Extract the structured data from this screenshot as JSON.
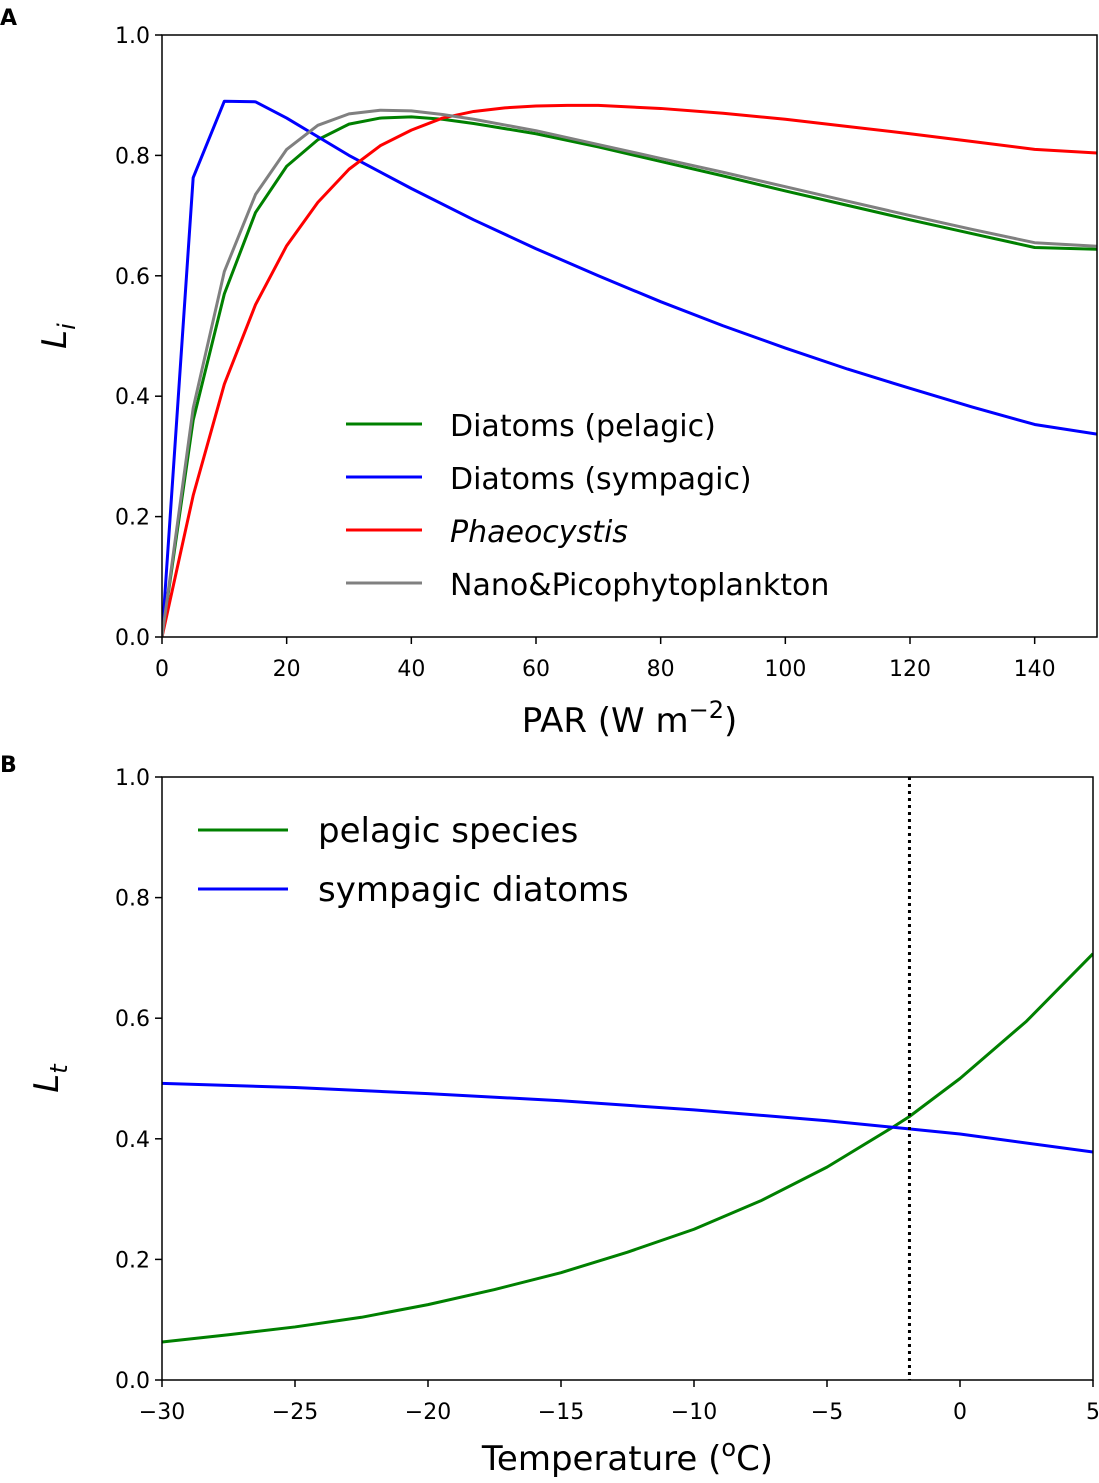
{
  "chart_data": [
    {
      "panel": "A",
      "type": "line",
      "title": "",
      "xlabel": "PAR (W m",
      "xlabel_sup": "−2",
      "xlabel_end": ")",
      "ylabel": "L",
      "ylabel_sub": "i",
      "xlim": [
        0,
        150
      ],
      "ylim": [
        0,
        1.0
      ],
      "xticks": [
        0,
        20,
        40,
        60,
        80,
        100,
        120,
        140
      ],
      "xtick_labels": [
        "0",
        "20",
        "40",
        "60",
        "80",
        "100",
        "120",
        "140"
      ],
      "yticks": [
        0.0,
        0.2,
        0.4,
        0.6,
        0.8,
        1.0
      ],
      "ytick_labels": [
        "0.0",
        "0.2",
        "0.4",
        "0.6",
        "0.8",
        "1.0"
      ],
      "grid": false,
      "legend_position": "lower-center",
      "series": [
        {
          "name": "Diatoms (pelagic)",
          "color": "#008000",
          "italic": false,
          "x": [
            0,
            5,
            10,
            15,
            20,
            25,
            30,
            35,
            40,
            45,
            50,
            60,
            70,
            80,
            90,
            100,
            110,
            120,
            130,
            140,
            150
          ],
          "y": [
            0.0,
            0.36,
            0.57,
            0.705,
            0.782,
            0.826,
            0.852,
            0.862,
            0.864,
            0.86,
            0.853,
            0.836,
            0.814,
            0.79,
            0.766,
            0.741,
            0.717,
            0.693,
            0.67,
            0.647,
            0.644
          ]
        },
        {
          "name": "Diatoms (sympagic)",
          "color": "#0000ff",
          "italic": false,
          "x": [
            0,
            5,
            10,
            15,
            20,
            30,
            40,
            50,
            60,
            70,
            80,
            90,
            100,
            110,
            120,
            130,
            140,
            150
          ],
          "y": [
            0.0,
            0.763,
            0.89,
            0.889,
            0.862,
            0.8,
            0.745,
            0.693,
            0.645,
            0.6,
            0.557,
            0.517,
            0.48,
            0.445,
            0.413,
            0.382,
            0.353,
            0.337
          ]
        },
        {
          "name": "Phaeocystis",
          "color": "#ff0000",
          "italic": true,
          "x": [
            0,
            5,
            10,
            15,
            20,
            25,
            30,
            35,
            40,
            45,
            50,
            55,
            60,
            65,
            70,
            80,
            90,
            100,
            110,
            120,
            130,
            140,
            150
          ],
          "y": [
            0.0,
            0.235,
            0.42,
            0.552,
            0.65,
            0.722,
            0.777,
            0.816,
            0.842,
            0.862,
            0.873,
            0.879,
            0.882,
            0.883,
            0.883,
            0.878,
            0.87,
            0.86,
            0.848,
            0.836,
            0.823,
            0.81,
            0.804
          ]
        },
        {
          "name": "Nano&Picophytoplankton",
          "color": "#808080",
          "italic": false,
          "x": [
            0,
            5,
            10,
            15,
            20,
            25,
            30,
            35,
            40,
            45,
            50,
            60,
            70,
            80,
            90,
            100,
            110,
            120,
            130,
            140,
            150
          ],
          "y": [
            0.0,
            0.38,
            0.607,
            0.735,
            0.81,
            0.85,
            0.869,
            0.875,
            0.874,
            0.868,
            0.86,
            0.841,
            0.818,
            0.795,
            0.772,
            0.748,
            0.724,
            0.7,
            0.677,
            0.655,
            0.649
          ]
        }
      ]
    },
    {
      "panel": "B",
      "type": "line",
      "title": "",
      "xlabel": "Temperature  (",
      "xlabel_sup": "o",
      "xlabel_end": "C)",
      "ylabel": "L",
      "ylabel_sub": "t",
      "xlim": [
        -30,
        5
      ],
      "ylim": [
        0,
        1.0
      ],
      "xticks": [
        -30,
        -25,
        -20,
        -15,
        -10,
        -5,
        0,
        5
      ],
      "xtick_labels": [
        "−30",
        "−25",
        "−20",
        "−15",
        "−10",
        "−5",
        "0",
        "5"
      ],
      "yticks": [
        0.0,
        0.2,
        0.4,
        0.6,
        0.8,
        1.0
      ],
      "ytick_labels": [
        "0.0",
        "0.2",
        "0.4",
        "0.6",
        "0.8",
        "1.0"
      ],
      "grid": false,
      "legend_position": "upper-left",
      "vline": {
        "x": -1.9,
        "style": "dotted",
        "color": "#000000"
      },
      "series": [
        {
          "name": "pelagic species",
          "color": "#008000",
          "italic": false,
          "x": [
            -30,
            -27.5,
            -25,
            -22.5,
            -20,
            -17.5,
            -15,
            -12.5,
            -10,
            -7.5,
            -5,
            -2.5,
            -1.9,
            0,
            2.5,
            5
          ],
          "y": [
            0.063,
            0.075,
            0.088,
            0.104,
            0.125,
            0.15,
            0.178,
            0.212,
            0.25,
            0.297,
            0.353,
            0.42,
            0.437,
            0.5,
            0.595,
            0.707
          ]
        },
        {
          "name": "sympagic diatoms",
          "color": "#0000ff",
          "italic": false,
          "x": [
            -30,
            -25,
            -20,
            -15,
            -10,
            -5,
            0,
            5
          ],
          "y": [
            0.492,
            0.485,
            0.475,
            0.463,
            0.448,
            0.43,
            0.408,
            0.378
          ]
        }
      ]
    }
  ]
}
